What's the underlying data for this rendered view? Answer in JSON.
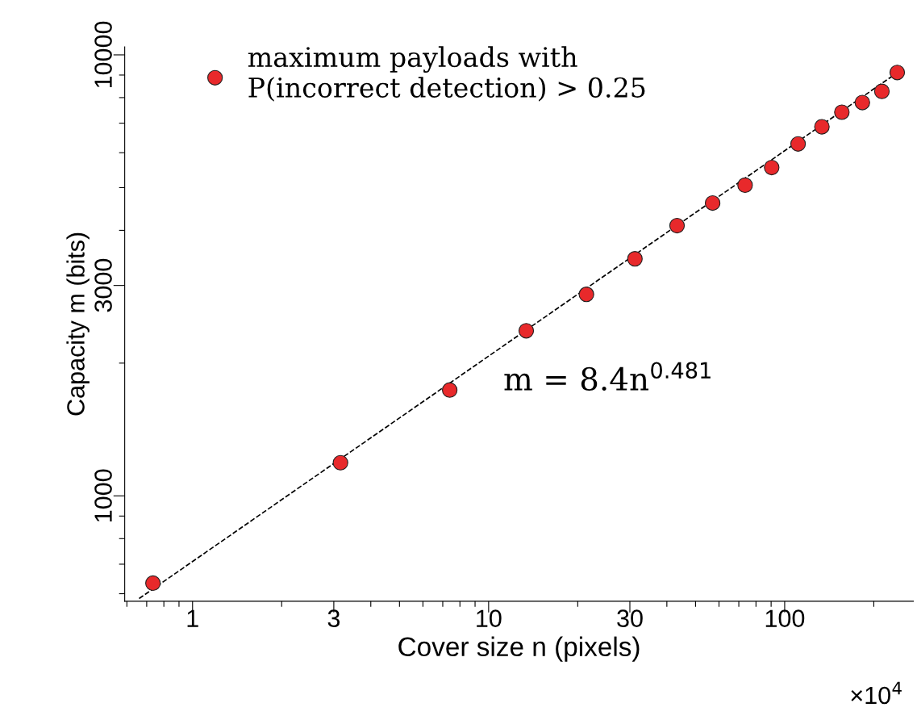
{
  "chart_data": {
    "type": "scatter",
    "xlabel": "Cover size n (pixels)",
    "ylabel": "Capacity m (bits)",
    "log": "xy",
    "grid": false,
    "legend": "top left",
    "marker": "circle",
    "xlim": [
      0.59,
      272
    ],
    "ylim": [
      577,
      10430
    ],
    "xticks": [
      {
        "value": 0.6,
        "label": null
      },
      {
        "value": 0.7,
        "label": null
      },
      {
        "value": 0.8,
        "label": null
      },
      {
        "value": 0.9,
        "label": null
      },
      1,
      {
        "value": 2,
        "label": null
      },
      3,
      {
        "value": 4,
        "label": null
      },
      {
        "value": 5,
        "label": null
      },
      {
        "value": 6,
        "label": null
      },
      {
        "value": 7,
        "label": null
      },
      {
        "value": 8,
        "label": null
      },
      {
        "value": 9,
        "label": null
      },
      10,
      {
        "value": 20,
        "label": null
      },
      30,
      {
        "value": 40,
        "label": null
      },
      {
        "value": 50,
        "label": null
      },
      {
        "value": 60,
        "label": null
      },
      {
        "value": 70,
        "label": null
      },
      {
        "value": 80,
        "label": null
      },
      {
        "value": 90,
        "label": null
      },
      100,
      {
        "value": 200,
        "label": null
      }
    ],
    "yticks": [
      {
        "value": 600,
        "label": null
      },
      {
        "value": 700,
        "label": null
      },
      {
        "value": 800,
        "label": null
      },
      {
        "value": 900,
        "label": null
      },
      1000,
      {
        "value": 2000,
        "label": null
      },
      3000,
      {
        "value": 4000,
        "label": null
      },
      {
        "value": 5000,
        "label": null
      },
      {
        "value": 6000,
        "label": null
      },
      {
        "value": 7000,
        "label": null
      },
      {
        "value": 8000,
        "label": null
      },
      {
        "value": 9000,
        "label": null
      },
      10000
    ],
    "series": [
      {
        "name": "maximum payloads with\nP(incorrect detection) > 0.25",
        "color": "#e8292b",
        "x": [
          0.735,
          3.16,
          7.39,
          13.4,
          21.4,
          31.2,
          43.3,
          57.1,
          73.5,
          90.4,
          111,
          133.6,
          156,
          183,
          213,
          240
        ],
        "values": [
          634,
          1189,
          1738,
          2368,
          2864,
          3448,
          4100,
          4613,
          5065,
          5553,
          6281,
          6870,
          7413,
          7796,
          8267,
          9120
        ]
      },
      {
        "type": "line",
        "color": "#000000",
        "line_style": "dashed",
        "marker": "none",
        "x": [
          0.66,
          245
        ],
        "values": [
          585,
          9200
        ]
      }
    ],
    "annotations": [
      "m = 8.4n$^{0.481}$",
      "×10$^{4}$"
    ]
  }
}
